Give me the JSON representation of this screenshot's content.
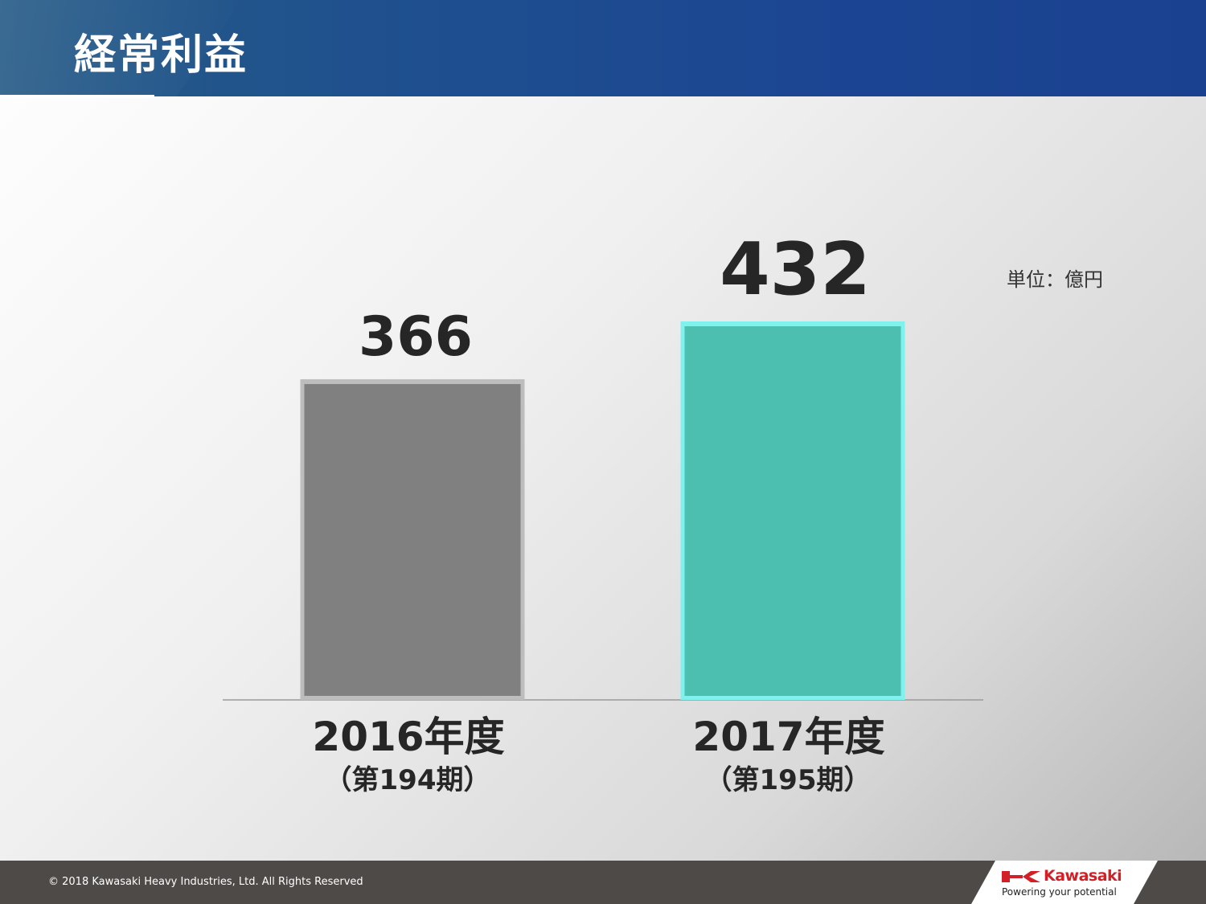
{
  "header": {
    "title": "経常利益"
  },
  "unit_label": "単位：億円",
  "footer": {
    "copyright": "© 2018 Kawasaki Heavy Industries, Ltd. All Rights Reserved",
    "brand": "Kawasaki",
    "tagline": "Powering your potential"
  },
  "colors": {
    "bar_2016": "#808080",
    "bar_2017": "#4cbfb0",
    "header": "#1f4a8f",
    "footer": "#4e4a48",
    "brand": "#d31f26"
  },
  "chart_data": {
    "type": "bar",
    "categories": [
      "2016年度",
      "2017年度"
    ],
    "category_sublabels": [
      "（第194期）",
      "（第195期）"
    ],
    "values": [
      366,
      432
    ],
    "value_labels": [
      "366",
      "432"
    ],
    "ylim": [
      0,
      432
    ],
    "unit": "単位：億円",
    "grid": false
  }
}
